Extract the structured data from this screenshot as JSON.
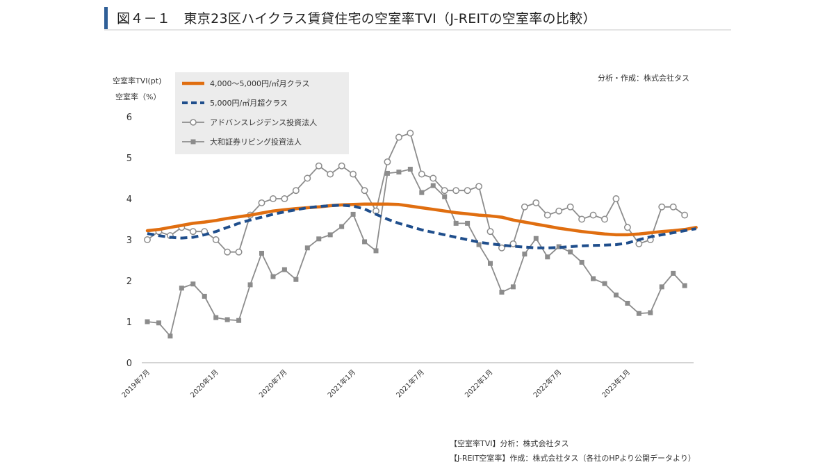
{
  "title": "図４－１　東京23区ハイクラス賃貸住宅の空室率TVI（J-REITの空室率の比較）",
  "source_note": "分析・作成：株式会社タス",
  "footnotes": [
    "【空室率TVI】分析：株式会社タス",
    "【J-REIT空室率】作成：株式会社タス（各社のHPより公開データより）"
  ],
  "colors": {
    "orange": "#e06e10",
    "navy": "#1f4e8c",
    "gray": "#8c8c8c",
    "title_accent": "#2f5f97"
  },
  "chart_data": {
    "type": "line",
    "ylabel_1": "空室率TVI(pt)",
    "ylabel_2": "空室率（%）",
    "ylim": [
      0,
      6
    ],
    "yticks": [
      "0",
      "1",
      "2",
      "3",
      "4",
      "5",
      "6"
    ],
    "grid": false,
    "legend_position": "top-left",
    "xlabel": "",
    "x_tick_labels": [
      "2019年7月",
      "2020年1月",
      "2020年7月",
      "2021年1月",
      "2021年7月",
      "2022年1月",
      "2022年7月",
      "2023年1月"
    ],
    "x_tick_index": [
      0,
      6,
      12,
      18,
      24,
      30,
      36,
      42
    ],
    "series": [
      {
        "name": "4,000～5,000円/㎡月クラス",
        "style": "thick-solid",
        "color": "#e06e10",
        "values": [
          3.22,
          3.25,
          3.3,
          3.35,
          3.4,
          3.43,
          3.47,
          3.52,
          3.56,
          3.6,
          3.65,
          3.7,
          3.73,
          3.76,
          3.78,
          3.8,
          3.83,
          3.85,
          3.86,
          3.87,
          3.87,
          3.87,
          3.86,
          3.82,
          3.78,
          3.74,
          3.7,
          3.66,
          3.63,
          3.6,
          3.58,
          3.55,
          3.48,
          3.43,
          3.38,
          3.33,
          3.28,
          3.24,
          3.2,
          3.17,
          3.14,
          3.12,
          3.12,
          3.14,
          3.17,
          3.2,
          3.22,
          3.25,
          3.3
        ]
      },
      {
        "name": "5,000円/㎡月超クラス",
        "style": "thick-dashed",
        "color": "#1f4e8c",
        "values": [
          3.15,
          3.1,
          3.06,
          3.04,
          3.06,
          3.12,
          3.2,
          3.3,
          3.4,
          3.48,
          3.55,
          3.62,
          3.68,
          3.73,
          3.78,
          3.81,
          3.83,
          3.84,
          3.82,
          3.75,
          3.62,
          3.5,
          3.4,
          3.32,
          3.24,
          3.18,
          3.12,
          3.06,
          3.0,
          2.94,
          2.9,
          2.87,
          2.84,
          2.82,
          2.8,
          2.8,
          2.81,
          2.83,
          2.85,
          2.86,
          2.87,
          2.88,
          2.92,
          3.0,
          3.07,
          3.12,
          3.17,
          3.22,
          3.27
        ]
      },
      {
        "name": "アドバンスレジデンス投資法人",
        "style": "circle-markers",
        "color": "#8c8c8c",
        "values": [
          3.0,
          3.2,
          3.1,
          3.3,
          3.2,
          3.2,
          3.0,
          2.7,
          2.7,
          3.6,
          3.9,
          4.0,
          4.0,
          4.2,
          4.5,
          4.8,
          4.6,
          4.8,
          4.6,
          4.2,
          3.7,
          4.9,
          5.5,
          5.6,
          4.6,
          4.5,
          4.2,
          4.2,
          4.2,
          4.3,
          3.2,
          2.8,
          2.9,
          3.8,
          3.9,
          3.6,
          3.7,
          3.8,
          3.5,
          3.6,
          3.5,
          4.0,
          3.3,
          2.9,
          3.0,
          3.8,
          3.8,
          3.6
        ]
      },
      {
        "name": "大和証券リビング投資法人",
        "style": "square-markers",
        "color": "#8c8c8c",
        "values": [
          1.0,
          0.97,
          0.65,
          1.82,
          1.92,
          1.62,
          1.1,
          1.05,
          1.03,
          1.9,
          2.67,
          2.1,
          2.27,
          2.03,
          2.8,
          3.02,
          3.12,
          3.32,
          3.62,
          2.95,
          2.73,
          4.62,
          4.65,
          4.72,
          4.15,
          4.32,
          4.05,
          3.4,
          3.4,
          2.88,
          2.42,
          1.72,
          1.85,
          2.65,
          3.03,
          2.58,
          2.83,
          2.7,
          2.45,
          2.05,
          1.93,
          1.65,
          1.45,
          1.2,
          1.22,
          1.85,
          2.18,
          1.88
        ]
      }
    ]
  }
}
